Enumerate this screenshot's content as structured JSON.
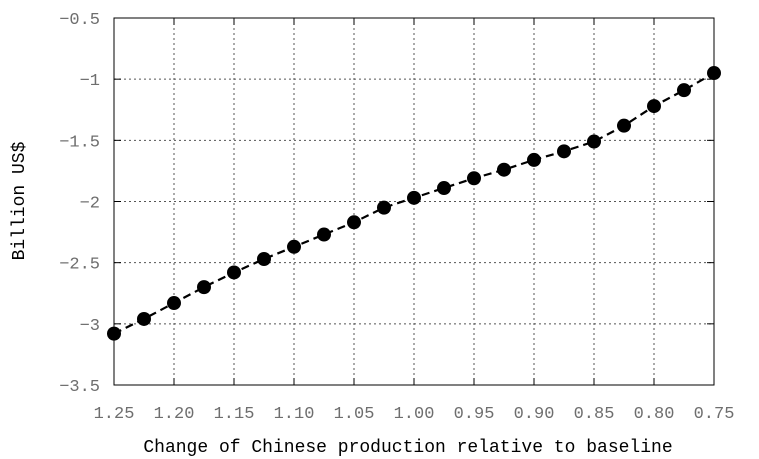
{
  "chart_data": {
    "type": "line",
    "title": "",
    "xlabel": "Change of Chinese production relative to baseline",
    "ylabel": "Billion US$",
    "x_reversed": true,
    "xlim": [
      1.25,
      0.75
    ],
    "ylim": [
      -3.5,
      -0.5
    ],
    "grid": true,
    "x_ticks": [
      1.25,
      1.2,
      1.15,
      1.1,
      1.05,
      1.0,
      0.95,
      0.9,
      0.85,
      0.8,
      0.75
    ],
    "x_tick_labels": [
      "1.25",
      "1.20",
      "1.15",
      "1.10",
      "1.05",
      "1.00",
      "0.95",
      "0.90",
      "0.85",
      "0.80",
      "0.75"
    ],
    "y_ticks": [
      -0.5,
      -1,
      -1.5,
      -2,
      -2.5,
      -3,
      -3.5
    ],
    "y_tick_labels": [
      "−0.5",
      "−1",
      "−1.5",
      "−2",
      "−2.5",
      "−3",
      "−3.5"
    ],
    "series": [
      {
        "style": "dashed line with filled circle markers",
        "color": "#000000",
        "x": [
          1.25,
          1.225,
          1.2,
          1.175,
          1.15,
          1.125,
          1.1,
          1.075,
          1.05,
          1.025,
          1.0,
          0.975,
          0.95,
          0.925,
          0.9,
          0.875,
          0.85,
          0.825,
          0.8,
          0.775,
          0.75
        ],
        "y": [
          -3.08,
          -2.96,
          -2.83,
          -2.7,
          -2.58,
          -2.47,
          -2.37,
          -2.27,
          -2.17,
          -2.05,
          -1.97,
          -1.89,
          -1.81,
          -1.74,
          -1.66,
          -1.59,
          -1.51,
          -1.38,
          -1.22,
          -1.09,
          -0.95
        ]
      }
    ]
  }
}
